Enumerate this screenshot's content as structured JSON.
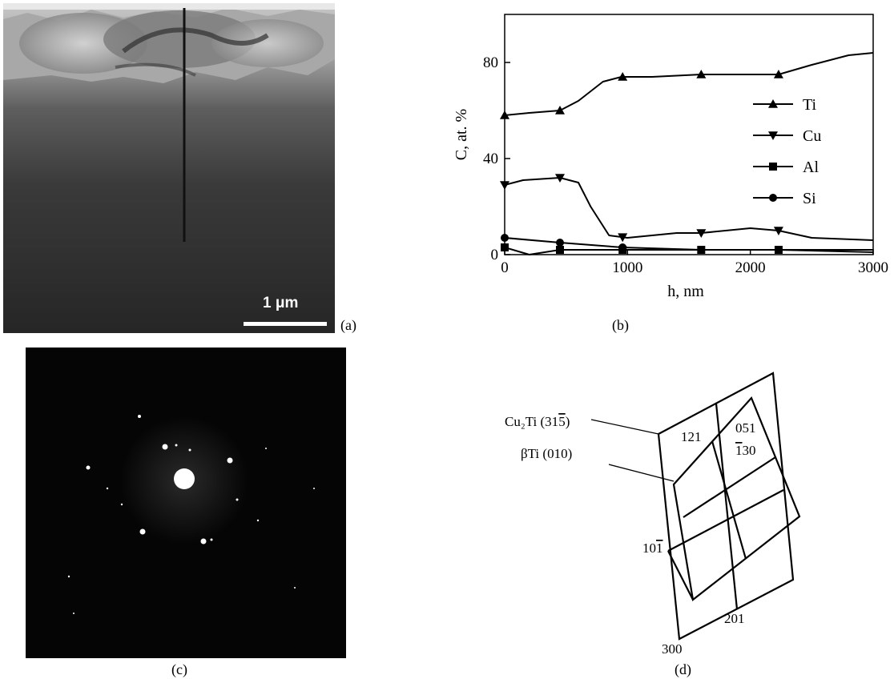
{
  "panels": {
    "a": {
      "label": "(a)",
      "scale_bar": "1 μm"
    },
    "b": {
      "label": "(b)"
    },
    "c": {
      "label": "(c)"
    },
    "d": {
      "label": "(d)"
    }
  },
  "chart_data": {
    "type": "line",
    "xlabel": "h, nm",
    "ylabel": "C, at. %",
    "xlim": [
      0,
      3000
    ],
    "ylim": [
      0,
      100
    ],
    "xticks": [
      0,
      1000,
      2000,
      3000
    ],
    "yticks": [
      0,
      40,
      80
    ],
    "legend_position": "right",
    "series": [
      {
        "name": "Ti",
        "marker": "triangle-up",
        "x": [
          0,
          200,
          450,
          600,
          800,
          950,
          1200,
          1600,
          2000,
          2230,
          2500,
          2800,
          3000
        ],
        "y": [
          58,
          59,
          60,
          64,
          72,
          74,
          74,
          75,
          75,
          75,
          79,
          83,
          84
        ],
        "marker_x": [
          0,
          450,
          960,
          1600,
          2230
        ]
      },
      {
        "name": "Cu",
        "marker": "triangle-down",
        "x": [
          0,
          150,
          450,
          600,
          700,
          850,
          1000,
          1400,
          1600,
          2000,
          2230,
          2500,
          3000
        ],
        "y": [
          29,
          31,
          32,
          30,
          20,
          8,
          7,
          9,
          9,
          11,
          10,
          7,
          6
        ],
        "marker_x": [
          0,
          450,
          960,
          1600,
          2230
        ]
      },
      {
        "name": "Al",
        "marker": "square",
        "x": [
          0,
          200,
          450,
          960,
          1600,
          2230,
          3000
        ],
        "y": [
          3,
          0,
          2,
          2,
          2,
          2,
          1
        ],
        "marker_x": [
          0,
          450,
          960,
          1600,
          2230
        ]
      },
      {
        "name": "Si",
        "marker": "circle",
        "x": [
          0,
          450,
          960,
          1600,
          2230,
          3000
        ],
        "y": [
          7,
          5,
          3,
          2,
          2,
          2
        ],
        "marker_x": [
          0,
          450,
          960,
          1600,
          2230
        ]
      }
    ]
  },
  "diagram": {
    "phase_labels": {
      "cu2ti": "Cu₂Ti (31",
      "cu2ti_end": "5)",
      "cu2ti_bar": "5",
      "beta_ti": "βTi (010)"
    },
    "spot_labels": {
      "s121": "121",
      "s051": "051",
      "s130_bar": "1",
      "s130_rest": "30",
      "s10_1_pre": "10",
      "s10_1_bar": "1",
      "s201": "201",
      "s300": "300"
    }
  }
}
